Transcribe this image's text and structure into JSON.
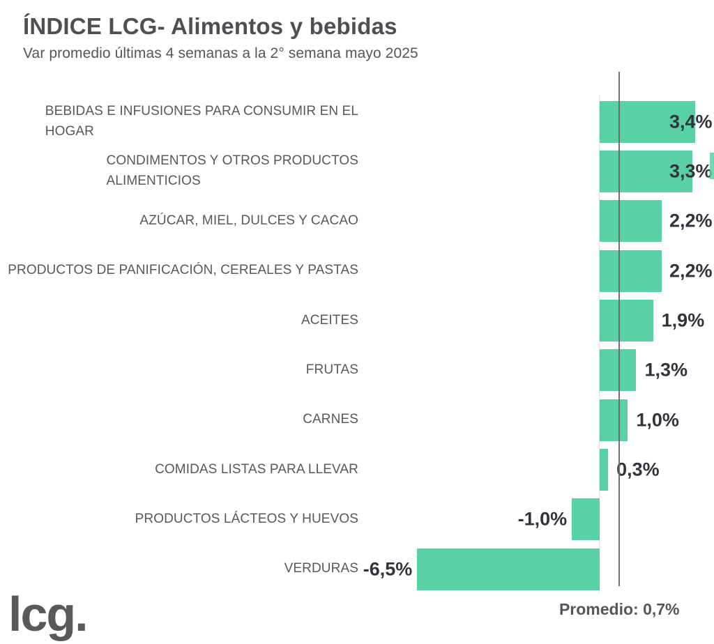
{
  "header": {
    "title": "ÍNDICE LCG- Alimentos y bebidas",
    "subtitle": "Var promedio últimas 4 semanas a la 2° semana mayo 2025"
  },
  "footer": {
    "logo_text": "lcg."
  },
  "chart_data": {
    "type": "bar",
    "orientation": "horizontal",
    "title": "ÍNDICE LCG- Alimentos y bebidas",
    "subtitle": "Var promedio últimas 4 semanas a la 2° semana mayo 2025",
    "categories": [
      "BEBIDAS E INFUSIONES PARA CONSUMIR EN EL\nHOGAR",
      "CONDIMENTOS Y OTROS PRODUCTOS\nALIMENTICIOS",
      "AZÚCAR, MIEL, DULCES Y CACAO",
      "PRODUCTOS DE PANIFICACIÓN, CEREALES Y PASTAS",
      "ACEITES",
      "FRUTAS",
      "CARNES",
      "COMIDAS LISTAS PARA LLEVAR",
      "PRODUCTOS LÁCTEOS Y HUEVOS",
      "VERDURAS"
    ],
    "values": [
      3.4,
      3.3,
      2.2,
      2.2,
      1.9,
      1.3,
      1.0,
      0.3,
      -1.0,
      -6.5
    ],
    "value_labels": [
      "3,4%",
      "3,3%",
      "2,2%",
      "2,2%",
      "1,9%",
      "1,3%",
      "1,0%",
      "0,3%",
      "-1,0%",
      "-6,5%"
    ],
    "average": {
      "label": "Promedio: 0,7%",
      "value": 0.7
    },
    "xlim": [
      -6.7,
      4.1
    ],
    "xlabel": "",
    "ylabel": "",
    "grid": false,
    "legend": false,
    "colors": {
      "bar": "#5ad0a5",
      "value_label": "#33333e",
      "text": "#56585b",
      "average_line": "#6f6f6f",
      "zero_axis": "#dfdfdf"
    }
  }
}
